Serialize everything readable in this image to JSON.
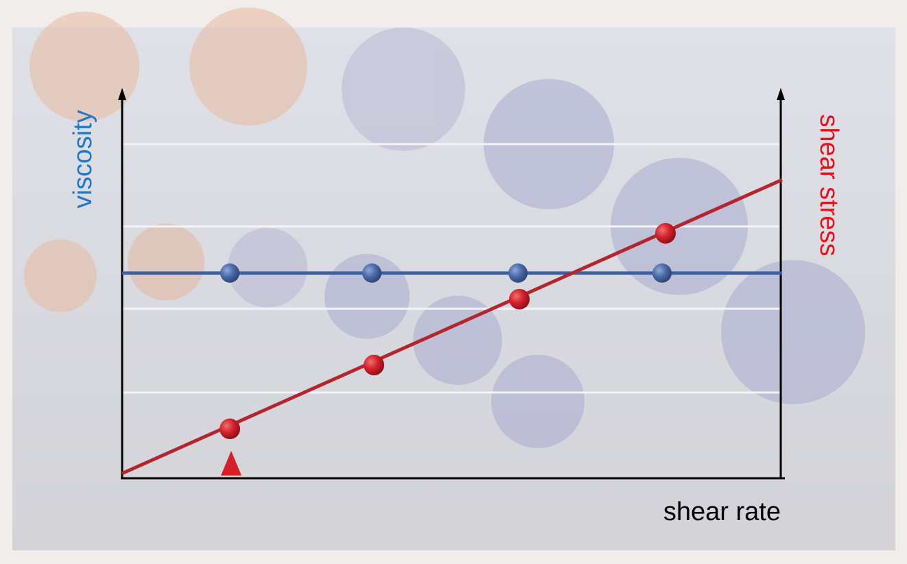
{
  "axes": {
    "left_label": "viscosity",
    "right_label": "shear stress",
    "bottom_label": "shear rate"
  }
}
